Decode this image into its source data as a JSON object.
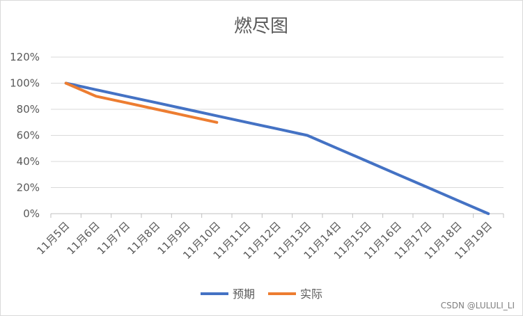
{
  "chart_data": {
    "type": "line",
    "title": "燃尽图",
    "xlabel": "",
    "ylabel": "",
    "categories": [
      "11月5日",
      "11月6日",
      "11月7日",
      "11月8日",
      "11月9日",
      "11月10日",
      "11月11日",
      "11月12日",
      "11月13日",
      "11月14日",
      "11月15日",
      "11月16日",
      "11月17日",
      "11月18日",
      "11月19日"
    ],
    "y_ticks": [
      "0%",
      "20%",
      "40%",
      "60%",
      "80%",
      "100%",
      "120%"
    ],
    "ylim": [
      0,
      1.2
    ],
    "y_format": "percent",
    "grid": true,
    "legend_position": "bottom",
    "series": [
      {
        "name": "预期",
        "color": "#4472C4",
        "values": [
          1.0,
          0.95,
          0.9,
          0.85,
          0.8,
          0.75,
          0.7,
          0.65,
          0.6,
          0.5,
          0.4,
          0.3,
          0.2,
          0.1,
          0.0
        ]
      },
      {
        "name": "实际",
        "color": "#ED7D31",
        "values": [
          1.0,
          0.9,
          0.85,
          0.8,
          0.75,
          0.7,
          null,
          null,
          null,
          null,
          null,
          null,
          null,
          null,
          null
        ]
      }
    ]
  },
  "watermark": "CSDN @LULULI_LI"
}
